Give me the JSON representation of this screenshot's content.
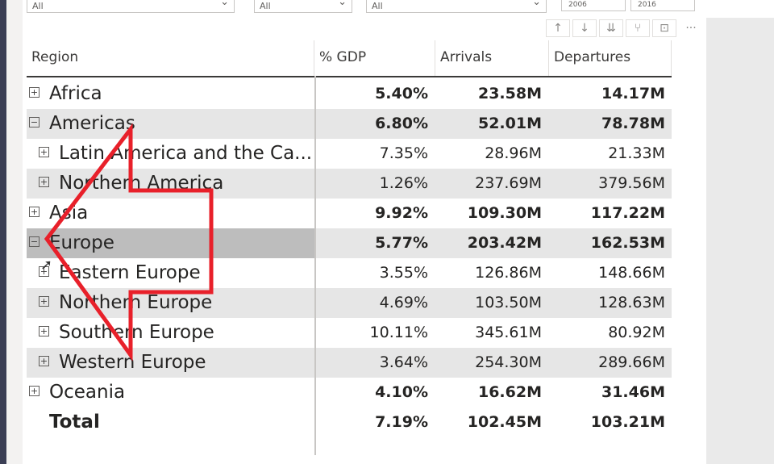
{
  "slicers": [
    {
      "value": "All"
    },
    {
      "value": "All"
    },
    {
      "value": "All"
    }
  ],
  "date_range": {
    "start": "2006",
    "end": "2016"
  },
  "toolbar": {
    "drill_up": "↑",
    "drill_down": "↓",
    "expand_all": "⇊",
    "expand_next": "⑂",
    "focus_mode": "⊡",
    "more_options": "···"
  },
  "matrix": {
    "headers": [
      "Region",
      "% GDP",
      "Arrivals",
      "Departures"
    ],
    "rows": [
      {
        "label": "Africa",
        "expander": "+",
        "gdp": "5.40%",
        "arrivals": "23.58M",
        "departures": "14.17M"
      },
      {
        "label": "Americas",
        "expander": "−",
        "gdp": "6.80%",
        "arrivals": "52.01M",
        "departures": "78.78M"
      },
      {
        "label": "Latin America and the Ca...",
        "expander": "+",
        "gdp": "7.35%",
        "arrivals": "28.96M",
        "departures": "21.33M"
      },
      {
        "label": "Northern America",
        "expander": "+",
        "gdp": "1.26%",
        "arrivals": "237.69M",
        "departures": "379.56M"
      },
      {
        "label": "Asia",
        "expander": "+",
        "gdp": "9.92%",
        "arrivals": "109.30M",
        "departures": "117.22M"
      },
      {
        "label": "Europe",
        "expander": "−",
        "gdp": "5.77%",
        "arrivals": "203.42M",
        "departures": "162.53M"
      },
      {
        "label": "Eastern Europe",
        "expander": "+",
        "gdp": "3.55%",
        "arrivals": "126.86M",
        "departures": "148.66M"
      },
      {
        "label": "Northern Europe",
        "expander": "+",
        "gdp": "4.69%",
        "arrivals": "103.50M",
        "departures": "128.63M"
      },
      {
        "label": "Southern Europe",
        "expander": "+",
        "gdp": "10.11%",
        "arrivals": "345.61M",
        "departures": "80.92M"
      },
      {
        "label": "Western Europe",
        "expander": "+",
        "gdp": "3.64%",
        "arrivals": "254.30M",
        "departures": "289.66M"
      },
      {
        "label": "Oceania",
        "expander": "+",
        "gdp": "4.10%",
        "arrivals": "16.62M",
        "departures": "31.46M"
      },
      {
        "label": "Total",
        "gdp": "7.19%",
        "arrivals": "102.45M",
        "departures": "103.21M"
      }
    ]
  },
  "annotation_color": "#e8202a"
}
